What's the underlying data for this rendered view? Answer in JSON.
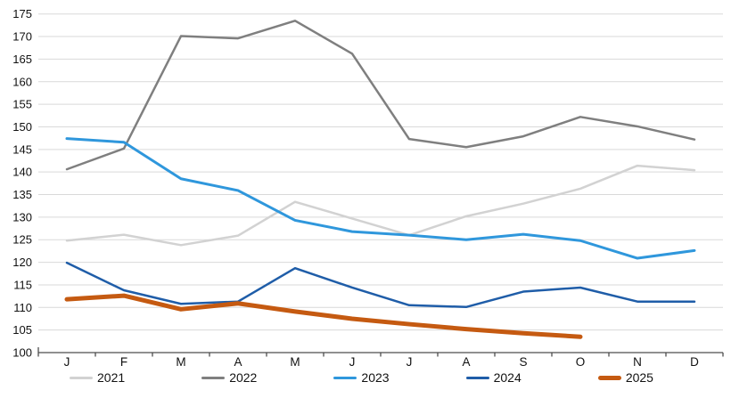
{
  "chart_data": {
    "type": "line",
    "title": "",
    "xlabel": "",
    "ylabel": "",
    "x_labels": [
      "J",
      "F",
      "M",
      "A",
      "M",
      "J",
      "J",
      "A",
      "S",
      "O",
      "N",
      "D"
    ],
    "y_ticks": [
      100,
      105,
      110,
      115,
      120,
      125,
      130,
      135,
      140,
      145,
      150,
      155,
      160,
      165,
      170,
      175
    ],
    "ylim": [
      100,
      175
    ],
    "grid": "horizontal",
    "legend_position": "bottom",
    "series": [
      {
        "name": "2021",
        "color": "#d2d2d2",
        "width": 2.5,
        "values": [
          124.8,
          126.1,
          123.8,
          125.9,
          133.4,
          129.7,
          126.0,
          130.2,
          133.0,
          136.3,
          141.4,
          140.4
        ]
      },
      {
        "name": "2022",
        "color": "#7f7f7f",
        "width": 2.5,
        "values": [
          140.6,
          145.2,
          170.1,
          169.6,
          173.5,
          166.2,
          147.3,
          145.5,
          147.9,
          152.2,
          150.1,
          147.2
        ]
      },
      {
        "name": "2023",
        "color": "#2f97dc",
        "width": 3,
        "values": [
          147.4,
          146.6,
          138.5,
          135.9,
          129.3,
          126.8,
          126.0,
          125.0,
          126.2,
          124.8,
          120.9,
          122.6
        ]
      },
      {
        "name": "2024",
        "color": "#1f5da8",
        "width": 2.5,
        "values": [
          119.9,
          113.8,
          110.8,
          111.3,
          118.7,
          114.4,
          110.5,
          110.1,
          113.5,
          114.4,
          111.3,
          111.3
        ]
      },
      {
        "name": "2025",
        "color": "#c55a11",
        "width": 5,
        "values": [
          111.8,
          112.6,
          109.6,
          110.9,
          109.1,
          107.5,
          106.3,
          105.2,
          104.3,
          103.5
        ]
      }
    ],
    "colors": {
      "background": "#ffffff",
      "gridline": "#d9d9d9",
      "axis": "#4d4d4d",
      "tick_label": "#111111"
    }
  }
}
